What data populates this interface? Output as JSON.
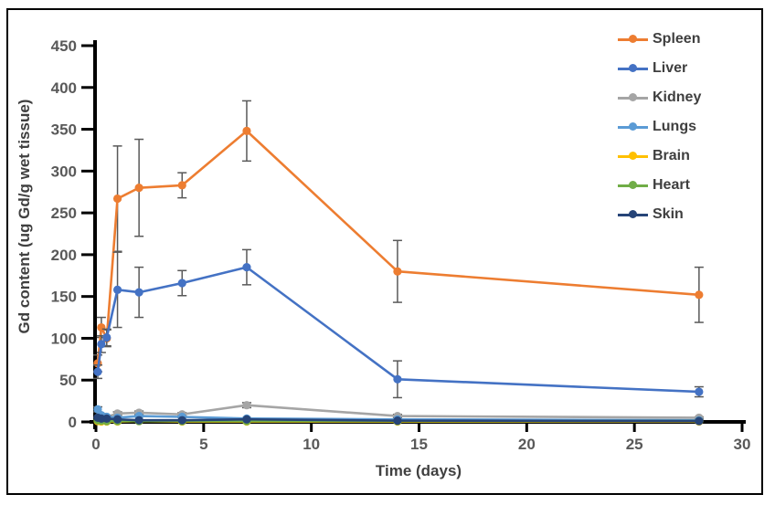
{
  "chart_data": {
    "type": "line",
    "title": "",
    "xlabel": "Time (days)",
    "ylabel": "Gd content (ug Gd/g wet tissue)",
    "xlim": [
      0,
      30
    ],
    "ylim": [
      0,
      450
    ],
    "xticks": [
      0,
      5,
      10,
      15,
      20,
      25,
      30
    ],
    "yticks": [
      0,
      50,
      100,
      150,
      200,
      250,
      300,
      350,
      400,
      450
    ],
    "grid": false,
    "legend_position": "top-right",
    "axis_color": "#000000",
    "error_bar_color": "#595959",
    "x": [
      0.083,
      0.25,
      0.5,
      1,
      2,
      4,
      7,
      14,
      28
    ],
    "series": [
      {
        "name": "Spleen",
        "color": "#ED7D31",
        "values": [
          70,
          113,
          100,
          267,
          280,
          283,
          348,
          180,
          152
        ],
        "errors": [
          10,
          12,
          10,
          63,
          58,
          15,
          36,
          37,
          33
        ]
      },
      {
        "name": "Liver",
        "color": "#4472C4",
        "values": [
          60,
          93,
          101,
          158,
          155,
          166,
          185,
          51,
          36
        ],
        "errors": [
          8,
          10,
          10,
          45,
          30,
          15,
          21,
          22,
          6
        ]
      },
      {
        "name": "Kidney",
        "color": "#A5A5A5",
        "values": [
          5,
          6,
          6,
          10,
          11,
          9,
          20,
          7,
          5
        ],
        "errors": [
          0,
          0,
          0,
          2,
          2,
          2,
          3,
          2,
          1
        ]
      },
      {
        "name": "Lungs",
        "color": "#5B9BD5",
        "values": [
          15,
          8,
          6,
          5,
          7,
          6,
          4,
          3,
          2
        ],
        "errors": [
          3,
          2,
          1,
          1,
          1,
          1,
          1,
          1,
          1
        ]
      },
      {
        "name": "Brain",
        "color": "#FFC000",
        "values": [
          1,
          0.5,
          0.5,
          0.5,
          1,
          0.5,
          0.5,
          0.5,
          0.5
        ],
        "errors": [
          0,
          0,
          0,
          0,
          0,
          0,
          0,
          0,
          0
        ]
      },
      {
        "name": "Heart",
        "color": "#70AD47",
        "values": [
          2,
          1.5,
          1,
          1,
          1,
          1,
          1,
          1,
          1
        ],
        "errors": [
          0,
          0,
          0,
          0,
          0,
          0,
          0,
          0,
          0
        ]
      },
      {
        "name": "Skin",
        "color": "#264478",
        "values": [
          5,
          4,
          4,
          3,
          2,
          2,
          3,
          1.5,
          1
        ],
        "errors": [
          0,
          0,
          0,
          0,
          0,
          0,
          0,
          0,
          0
        ]
      }
    ]
  }
}
